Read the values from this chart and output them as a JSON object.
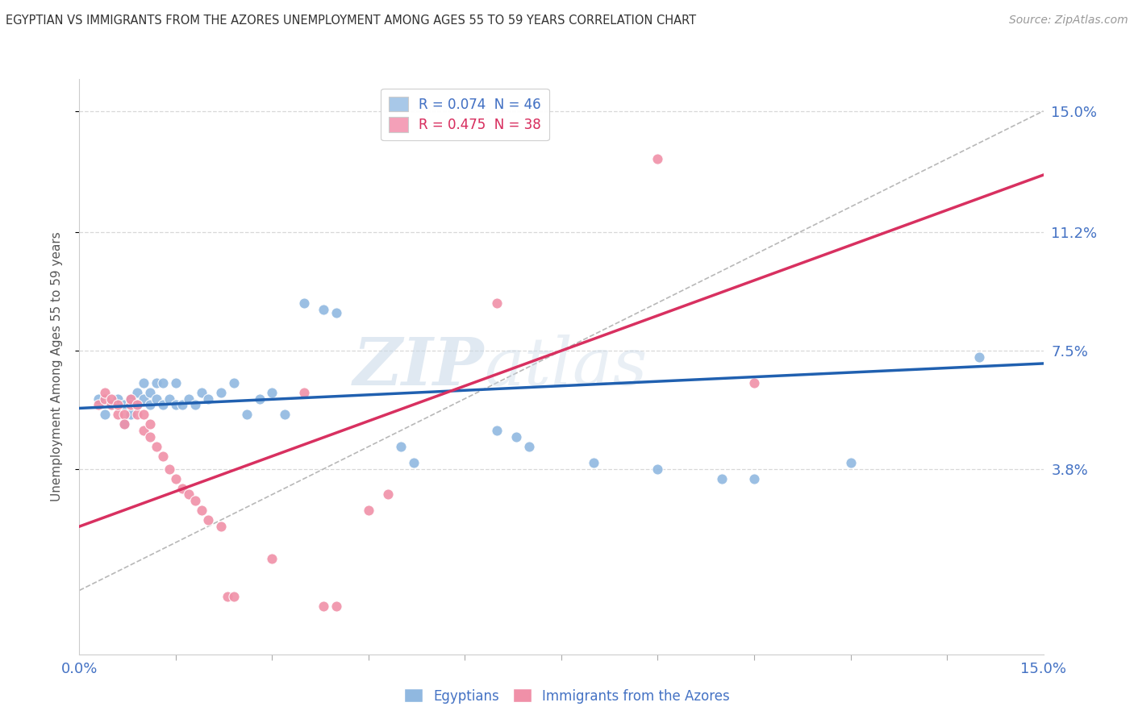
{
  "title": "EGYPTIAN VS IMMIGRANTS FROM THE AZORES UNEMPLOYMENT AMONG AGES 55 TO 59 YEARS CORRELATION CHART",
  "source": "Source: ZipAtlas.com",
  "ylabel": "Unemployment Among Ages 55 to 59 years",
  "xlim": [
    0.0,
    0.15
  ],
  "ylim": [
    -0.02,
    0.16
  ],
  "plot_ylim": [
    0.0,
    0.15
  ],
  "yticks": [
    0.038,
    0.075,
    0.112,
    0.15
  ],
  "ytick_labels": [
    "3.8%",
    "7.5%",
    "11.2%",
    "15.0%"
  ],
  "xtick_labels": [
    "0.0%",
    "15.0%"
  ],
  "watermark_text": "ZIP",
  "watermark_text2": "atlas",
  "legend_entries": [
    {
      "label": "R = 0.074  N = 46",
      "color": "#a8c8e8"
    },
    {
      "label": "R = 0.475  N = 38",
      "color": "#f4a0b8"
    }
  ],
  "egyptian_color": "#90b8e0",
  "azores_color": "#f090a8",
  "egyptian_line_color": "#2060b0",
  "azores_line_color": "#d83060",
  "diagonal_color": "#b8b8b8",
  "background_color": "#ffffff",
  "grid_color": "#d8d8d8",
  "egyptian_scatter": [
    [
      0.003,
      0.06
    ],
    [
      0.004,
      0.055
    ],
    [
      0.005,
      0.058
    ],
    [
      0.006,
      0.06
    ],
    [
      0.007,
      0.052
    ],
    [
      0.007,
      0.058
    ],
    [
      0.008,
      0.055
    ],
    [
      0.008,
      0.06
    ],
    [
      0.009,
      0.058
    ],
    [
      0.009,
      0.062
    ],
    [
      0.01,
      0.06
    ],
    [
      0.01,
      0.065
    ],
    [
      0.011,
      0.058
    ],
    [
      0.011,
      0.062
    ],
    [
      0.012,
      0.06
    ],
    [
      0.012,
      0.065
    ],
    [
      0.013,
      0.058
    ],
    [
      0.013,
      0.065
    ],
    [
      0.014,
      0.06
    ],
    [
      0.015,
      0.058
    ],
    [
      0.015,
      0.065
    ],
    [
      0.016,
      0.058
    ],
    [
      0.017,
      0.06
    ],
    [
      0.018,
      0.058
    ],
    [
      0.019,
      0.062
    ],
    [
      0.02,
      0.06
    ],
    [
      0.022,
      0.062
    ],
    [
      0.024,
      0.065
    ],
    [
      0.026,
      0.055
    ],
    [
      0.028,
      0.06
    ],
    [
      0.03,
      0.062
    ],
    [
      0.032,
      0.055
    ],
    [
      0.035,
      0.09
    ],
    [
      0.038,
      0.088
    ],
    [
      0.04,
      0.087
    ],
    [
      0.05,
      0.045
    ],
    [
      0.052,
      0.04
    ],
    [
      0.065,
      0.05
    ],
    [
      0.068,
      0.048
    ],
    [
      0.07,
      0.045
    ],
    [
      0.08,
      0.04
    ],
    [
      0.09,
      0.038
    ],
    [
      0.1,
      0.035
    ],
    [
      0.105,
      0.035
    ],
    [
      0.12,
      0.04
    ],
    [
      0.14,
      0.073
    ]
  ],
  "azores_scatter": [
    [
      0.003,
      0.058
    ],
    [
      0.004,
      0.06
    ],
    [
      0.004,
      0.062
    ],
    [
      0.005,
      0.058
    ],
    [
      0.005,
      0.06
    ],
    [
      0.006,
      0.055
    ],
    [
      0.006,
      0.058
    ],
    [
      0.007,
      0.055
    ],
    [
      0.007,
      0.052
    ],
    [
      0.008,
      0.058
    ],
    [
      0.008,
      0.06
    ],
    [
      0.009,
      0.055
    ],
    [
      0.009,
      0.058
    ],
    [
      0.01,
      0.05
    ],
    [
      0.01,
      0.055
    ],
    [
      0.011,
      0.048
    ],
    [
      0.011,
      0.052
    ],
    [
      0.012,
      0.045
    ],
    [
      0.013,
      0.042
    ],
    [
      0.014,
      0.038
    ],
    [
      0.015,
      0.035
    ],
    [
      0.016,
      0.032
    ],
    [
      0.017,
      0.03
    ],
    [
      0.018,
      0.028
    ],
    [
      0.019,
      0.025
    ],
    [
      0.02,
      0.022
    ],
    [
      0.022,
      0.02
    ],
    [
      0.023,
      -0.002
    ],
    [
      0.024,
      -0.002
    ],
    [
      0.03,
      0.01
    ],
    [
      0.035,
      0.062
    ],
    [
      0.038,
      -0.005
    ],
    [
      0.04,
      -0.005
    ],
    [
      0.045,
      0.025
    ],
    [
      0.048,
      0.03
    ],
    [
      0.065,
      0.09
    ],
    [
      0.09,
      0.135
    ],
    [
      0.105,
      0.065
    ]
  ],
  "egyptian_line": {
    "x0": 0.0,
    "y0": 0.057,
    "x1": 0.15,
    "y1": 0.071
  },
  "azores_line": {
    "x0": 0.0,
    "y0": 0.02,
    "x1": 0.15,
    "y1": 0.13
  },
  "diagonal_line": {
    "x0": 0.0,
    "y0": 0.0,
    "x1": 0.15,
    "y1": 0.15
  }
}
